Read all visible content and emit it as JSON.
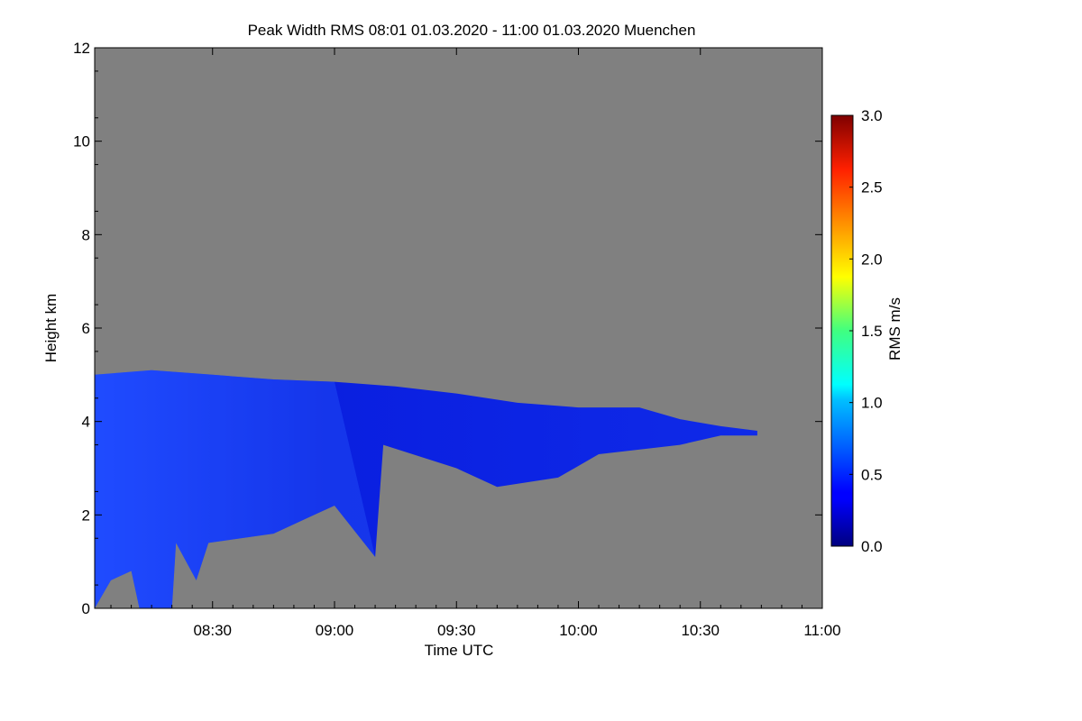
{
  "chart_data": {
    "type": "heatmap",
    "title": "Peak Width RMS   08:01 01.03.2020 - 11:00 01.03.2020 Muenchen",
    "xlabel": "Time UTC",
    "ylabel": "Height km",
    "xlim": [
      "08:01",
      "11:00"
    ],
    "ylim": [
      0,
      12
    ],
    "x_ticks": [
      "08:30",
      "09:00",
      "09:30",
      "10:00",
      "10:30",
      "11:00"
    ],
    "y_ticks": [
      "0",
      "2",
      "4",
      "6",
      "8",
      "10",
      "12"
    ],
    "background_color": "#808080",
    "colorbar": {
      "label": "RMS m/s",
      "min": 0.0,
      "max": 3.0,
      "ticks": [
        "0.0",
        "0.5",
        "1.0",
        "1.5",
        "2.0",
        "2.5",
        "3.0"
      ],
      "colormap": "jet"
    },
    "echo_region": {
      "description_value_range_ms": [
        0.1,
        0.6
      ],
      "top_km": [
        [
          "08:01",
          5.0
        ],
        [
          "08:15",
          5.1
        ],
        [
          "08:30",
          5.0
        ],
        [
          "08:45",
          4.9
        ],
        [
          "09:00",
          4.85
        ],
        [
          "09:15",
          4.75
        ],
        [
          "09:30",
          4.6
        ],
        [
          "09:45",
          4.4
        ],
        [
          "10:00",
          4.3
        ],
        [
          "10:15",
          4.3
        ],
        [
          "10:25",
          4.05
        ],
        [
          "10:35",
          3.9
        ],
        [
          "10:44",
          3.8
        ]
      ],
      "bottom_km": [
        [
          "08:01",
          0.0
        ],
        [
          "08:05",
          0.6
        ],
        [
          "08:10",
          0.8
        ],
        [
          "08:12",
          0.0
        ],
        [
          "08:20",
          0.0
        ],
        [
          "08:21",
          1.4
        ],
        [
          "08:26",
          0.6
        ],
        [
          "08:29",
          1.4
        ],
        [
          "08:45",
          1.6
        ],
        [
          "08:55",
          2.0
        ],
        [
          "09:00",
          2.2
        ],
        [
          "09:10",
          1.1
        ],
        [
          "09:12",
          3.5
        ],
        [
          "09:30",
          3.0
        ],
        [
          "09:40",
          2.6
        ],
        [
          "09:55",
          2.8
        ],
        [
          "10:05",
          3.3
        ],
        [
          "10:25",
          3.5
        ],
        [
          "10:35",
          3.7
        ],
        [
          "10:44",
          3.7
        ]
      ]
    }
  }
}
